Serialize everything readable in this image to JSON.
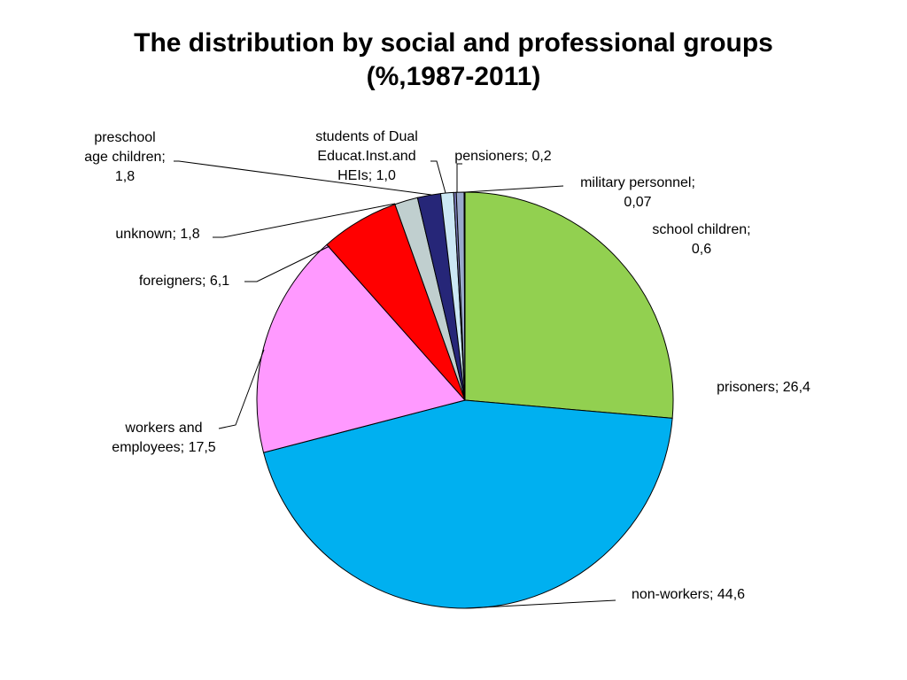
{
  "chart_data": {
    "type": "pie",
    "title_lines": [
      "The distribution by social and professional groups",
      "(%,1987-2011)"
    ],
    "slices": [
      {
        "name": "prisoners",
        "value": 26.4,
        "value_label": "26,4",
        "color": "#92d050",
        "label_lines": [
          "prisoners; 26,4"
        ]
      },
      {
        "name": "non-workers",
        "value": 44.6,
        "value_label": "44,6",
        "color": "#00b0f0",
        "label_lines": [
          "non-workers; 44,6"
        ]
      },
      {
        "name": "workers and employees",
        "value": 17.5,
        "value_label": "17,5",
        "color": "#ff99ff",
        "label_lines": [
          "workers and",
          "employees; 17,5"
        ]
      },
      {
        "name": "foreigners",
        "value": 6.1,
        "value_label": "6,1",
        "color": "#ff0000",
        "label_lines": [
          "foreigners; 6,1"
        ]
      },
      {
        "name": "unknown",
        "value": 1.8,
        "value_label": "1,8",
        "color": "#c0cfcf",
        "label_lines": [
          "unknown; 1,8"
        ]
      },
      {
        "name": "preschool age children",
        "value": 1.8,
        "value_label": "1,8",
        "color": "#262678",
        "label_lines": [
          "preschool",
          "age children;",
          "1,8"
        ]
      },
      {
        "name": "students of Dual Educat.Inst.and HEIs",
        "value": 1.0,
        "value_label": "1,0",
        "color": "#cce8f4",
        "label_lines": [
          "students of Dual",
          "Educat.Inst.and",
          "HEIs; 1,0"
        ]
      },
      {
        "name": "pensioners",
        "value": 0.2,
        "value_label": "0,2",
        "color": "#7f7fbf",
        "label_lines": [
          "pensioners; 0,2"
        ]
      },
      {
        "name": "school children",
        "value": 0.6,
        "value_label": "0,6",
        "color": "#99a9cc",
        "label_lines": [
          "school children;",
          "0,6"
        ]
      },
      {
        "name": "military personnel",
        "value": 0.07,
        "value_label": "0,07",
        "color": "#333333",
        "label_lines": [
          "military personnel;",
          "0,07"
        ]
      }
    ]
  }
}
